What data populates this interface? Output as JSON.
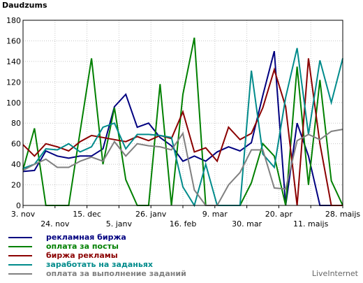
{
  "chart_data": {
    "type": "line",
    "ylabel": "Daudzums",
    "ylim": [
      0,
      180
    ],
    "yticks": [
      0,
      20,
      40,
      60,
      80,
      100,
      120,
      140,
      160,
      180
    ],
    "grid": true,
    "x_tick_labels": [
      "3. nov",
      "24. nov",
      "15. dec",
      "5. janv",
      "26. janv",
      "16. feb",
      "9. mar",
      "30. mar",
      "20. apr",
      "11. maijs",
      "28. maijs"
    ],
    "legend_placement": "bottom-left",
    "series": [
      {
        "name": "рекламная биржа",
        "color": "#000080",
        "values": [
          33,
          34,
          53,
          48,
          46,
          48,
          48,
          55,
          96,
          108,
          76,
          80,
          66,
          58,
          43,
          48,
          43,
          52,
          57,
          53,
          61,
          107,
          150,
          0,
          80,
          48,
          0,
          0,
          0
        ]
      },
      {
        "name": "оплата за посты",
        "color": "#008000",
        "values": [
          35,
          75,
          0,
          0,
          0,
          72,
          143,
          40,
          95,
          25,
          0,
          0,
          118,
          0,
          108,
          163,
          0,
          0,
          0,
          0,
          22,
          60,
          48,
          0,
          135,
          20,
          122,
          24,
          0
        ]
      },
      {
        "name": "биржа рекламы",
        "color": "#8b0000",
        "values": [
          59,
          48,
          60,
          57,
          53,
          62,
          68,
          66,
          64,
          62,
          67,
          63,
          68,
          65,
          91,
          52,
          56,
          43,
          76,
          64,
          70,
          95,
          132,
          96,
          0,
          143,
          60,
          0,
          0
        ]
      },
      {
        "name": "заработать на заданьях",
        "color": "#008b8b",
        "values": [
          36,
          40,
          55,
          54,
          60,
          52,
          57,
          76,
          80,
          55,
          69,
          69,
          68,
          66,
          18,
          0,
          40,
          0,
          0,
          0,
          131,
          50,
          37,
          105,
          153,
          69,
          141,
          100,
          143
        ]
      },
      {
        "name": "оплата за выполнение заданий",
        "color": "#808080",
        "values": [
          34,
          40,
          45,
          37,
          37,
          43,
          47,
          43,
          62,
          48,
          60,
          58,
          57,
          54,
          70,
          15,
          0,
          0,
          20,
          32,
          54,
          54,
          17,
          16,
          63,
          69,
          64,
          72,
          74
        ]
      }
    ]
  },
  "credit": "LiveInternet"
}
